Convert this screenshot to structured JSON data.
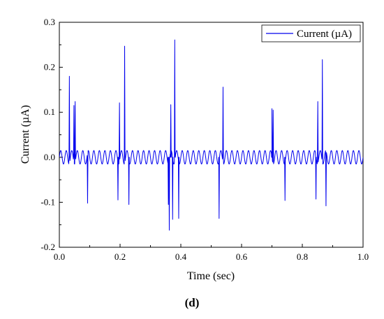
{
  "chart_data": {
    "type": "line",
    "xlabel": "Time (sec)",
    "ylabel": "Current (µA)",
    "xlim": [
      0.0,
      1.0
    ],
    "ylim": [
      -0.2,
      0.3
    ],
    "xticks": [
      "0.0",
      "0.2",
      "0.4",
      "0.6",
      "0.8",
      "1.0"
    ],
    "yticks": [
      "-0.2",
      "-0.1",
      "0.0",
      "0.1",
      "0.2",
      "0.3"
    ],
    "grid": false,
    "legend_position": "top-right",
    "caption": "(d)",
    "series": [
      {
        "name": "Current (µA)",
        "color": "#0000ee",
        "baseline": {
          "amplitude": 0.015,
          "cycles": 55,
          "points": 1320
        },
        "spikes": [
          {
            "x": 0.033,
            "y": 0.18
          },
          {
            "x": 0.048,
            "y": 0.115
          },
          {
            "x": 0.052,
            "y": 0.124
          },
          {
            "x": 0.093,
            "y": -0.102
          },
          {
            "x": 0.198,
            "y": 0.121
          },
          {
            "x": 0.193,
            "y": -0.095
          },
          {
            "x": 0.215,
            "y": 0.247
          },
          {
            "x": 0.229,
            "y": -0.105
          },
          {
            "x": 0.359,
            "y": -0.105
          },
          {
            "x": 0.362,
            "y": -0.162
          },
          {
            "x": 0.367,
            "y": 0.117
          },
          {
            "x": 0.373,
            "y": -0.138
          },
          {
            "x": 0.38,
            "y": 0.261
          },
          {
            "x": 0.393,
            "y": -0.136
          },
          {
            "x": 0.526,
            "y": -0.136
          },
          {
            "x": 0.539,
            "y": 0.156
          },
          {
            "x": 0.7,
            "y": 0.108
          },
          {
            "x": 0.704,
            "y": 0.105
          },
          {
            "x": 0.743,
            "y": -0.096
          },
          {
            "x": 0.845,
            "y": -0.093
          },
          {
            "x": 0.851,
            "y": 0.124
          },
          {
            "x": 0.866,
            "y": 0.217
          },
          {
            "x": 0.878,
            "y": -0.108
          }
        ]
      }
    ]
  }
}
